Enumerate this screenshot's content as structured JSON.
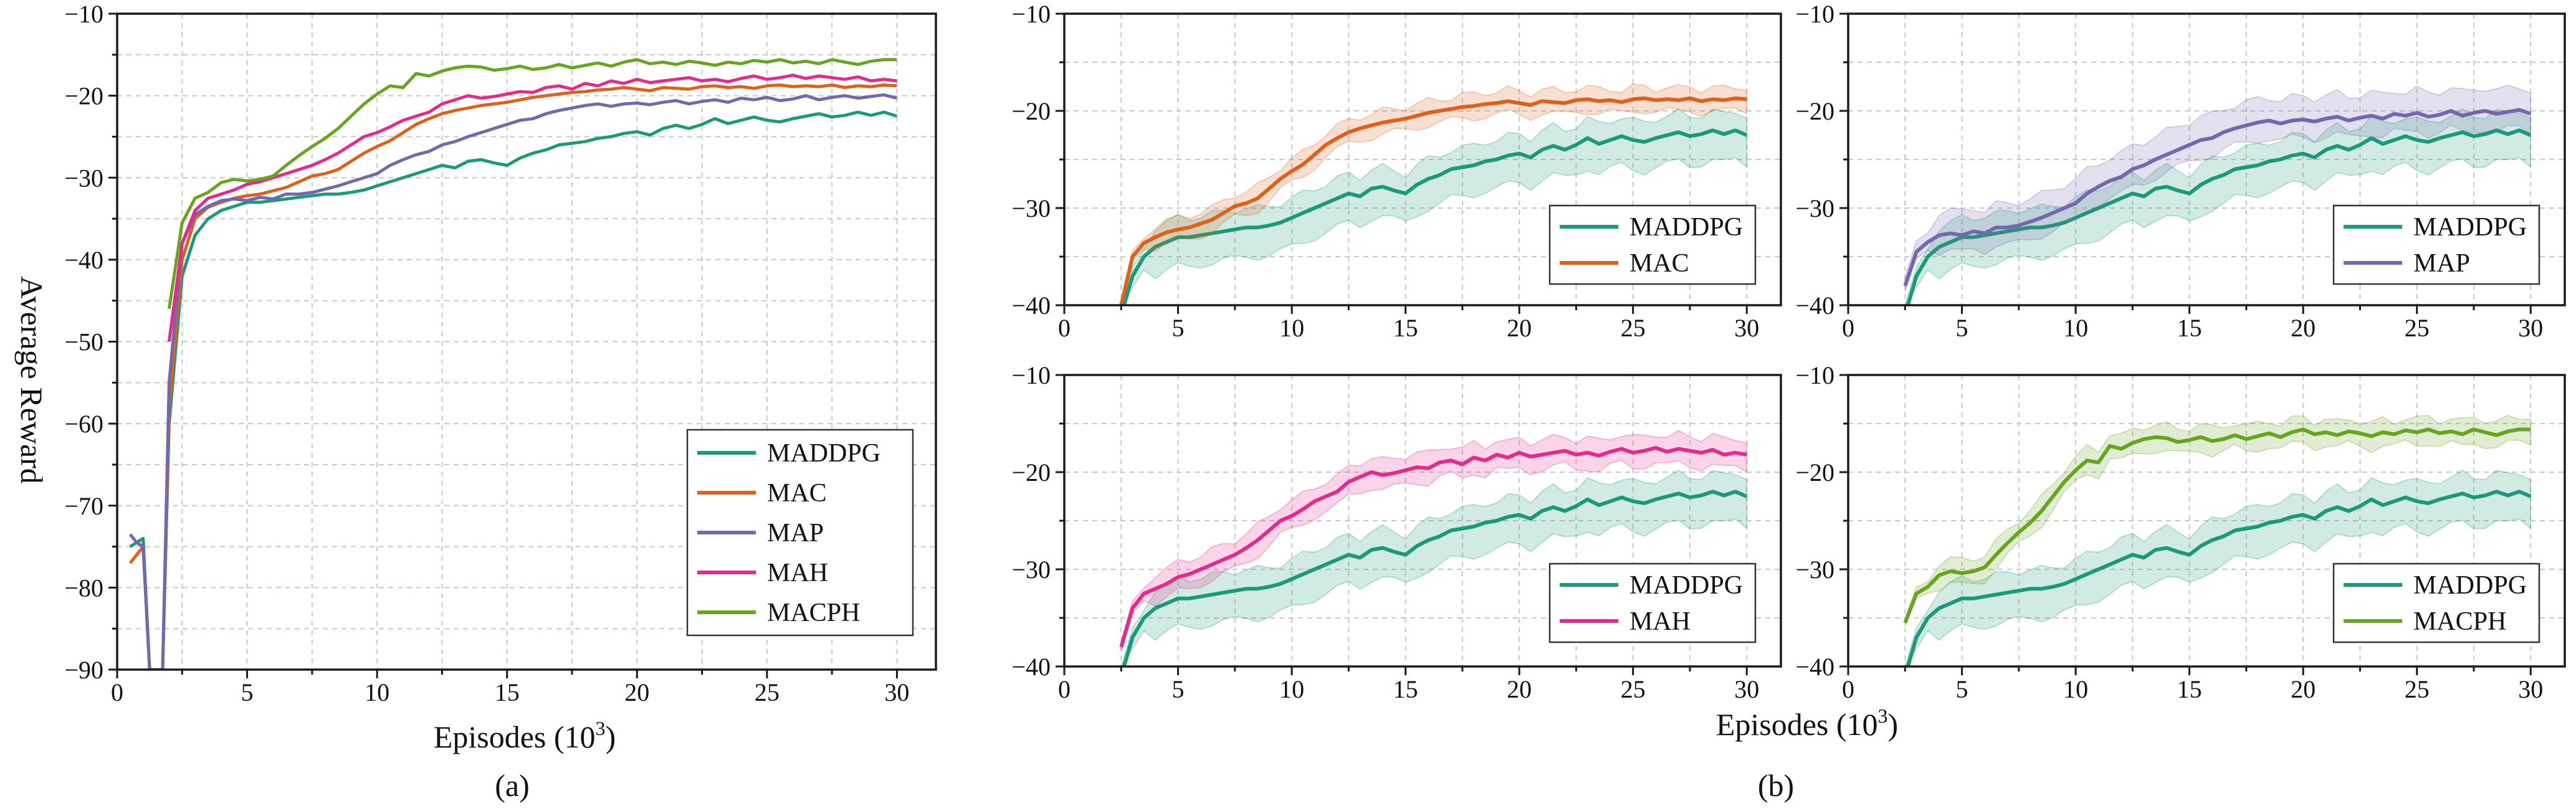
{
  "colors": {
    "MADDPG": "#1a9a78",
    "MAC": "#e0601a",
    "MAP": "#7367b0",
    "MAH": "#e42a8a",
    "MACPH": "#66a61e"
  },
  "panel_a": {
    "caption": "(a)",
    "xlabel": "Episodes (10",
    "xlabel_sup": "3",
    "xlabel_close": ")",
    "ylabel": "Average Reward"
  },
  "panel_b": {
    "caption": "(b)",
    "xlabel": "Episodes (10",
    "xlabel_sup": "3",
    "xlabel_close": ")"
  },
  "chart_data": [
    {
      "id": "a",
      "type": "line",
      "title": "",
      "xlabel": "Episodes (10^3)",
      "ylabel": "Average Reward",
      "xlim": [
        0,
        31.5
      ],
      "ylim": [
        -90,
        -10
      ],
      "xticks": [
        "0",
        "5",
        "10",
        "15",
        "20",
        "25",
        "30"
      ],
      "yticks": [
        "−90",
        "−80",
        "−70",
        "−60",
        "−50",
        "−40",
        "−30",
        "−20",
        "−10"
      ],
      "grid": true,
      "legend": "bottom-right",
      "series": [
        {
          "name": "MADDPG",
          "x": [
            0.5,
            0.75,
            1.0,
            1.25,
            1.5,
            1.75,
            2.0,
            2.5,
            3.0,
            3.5,
            4.0,
            4.5,
            5.0,
            5.5,
            6.0,
            6.5,
            7.0,
            7.5,
            8.0,
            8.5,
            9.0,
            9.5,
            10.0,
            10.5,
            11.0,
            11.5,
            12.0,
            12.5,
            13.0,
            13.5,
            14.0,
            14.5,
            15.0,
            15.5,
            16.0,
            16.5,
            17.0,
            17.5,
            18.0,
            18.5,
            19.0,
            19.5,
            20.0,
            20.5,
            21.0,
            21.5,
            22.0,
            22.5,
            23.0,
            23.5,
            24.0,
            24.5,
            25.0,
            25.5,
            26.0,
            26.5,
            27.0,
            27.5,
            28.0,
            28.5,
            29.0,
            29.5,
            30.0
          ],
          "values": [
            -75.0,
            -74.5,
            -74.0,
            -90.0,
            -90.0,
            -90.0,
            -60.0,
            -42.0,
            -37.0,
            -35.0,
            -34.0,
            -33.5,
            -33.0,
            -33.0,
            -32.8,
            -32.6,
            -32.4,
            -32.2,
            -32.0,
            -32.0,
            -31.8,
            -31.5,
            -31.0,
            -30.5,
            -30.0,
            -29.5,
            -29.0,
            -28.5,
            -28.8,
            -28.0,
            -27.8,
            -28.2,
            -28.5,
            -27.6,
            -27.0,
            -26.6,
            -26.0,
            -25.8,
            -25.6,
            -25.2,
            -25.0,
            -24.6,
            -24.4,
            -24.8,
            -24.0,
            -23.6,
            -24.0,
            -23.5,
            -22.8,
            -23.4,
            -23.0,
            -22.6,
            -23.0,
            -23.2,
            -22.8,
            -22.5,
            -22.2,
            -22.6,
            -22.4,
            -22.0,
            -22.4,
            -22.0,
            -22.5
          ]
        },
        {
          "name": "MAC",
          "x": [
            0.5,
            0.75,
            1.0,
            1.25,
            1.5,
            1.75,
            2.0,
            2.5,
            3.0,
            3.5,
            4.0,
            4.5,
            5.0,
            5.5,
            6.0,
            6.5,
            7.0,
            7.5,
            8.0,
            8.5,
            9.0,
            9.5,
            10.0,
            10.5,
            11.0,
            11.5,
            12.0,
            12.5,
            13.0,
            13.5,
            14.0,
            14.5,
            15.0,
            15.5,
            16.0,
            16.5,
            17.0,
            17.5,
            18.0,
            18.5,
            19.0,
            19.5,
            20.0,
            20.5,
            21.0,
            21.5,
            22.0,
            22.5,
            23.0,
            23.5,
            24.0,
            24.5,
            25.0,
            25.5,
            26.0,
            26.5,
            27.0,
            27.5,
            28.0,
            28.5,
            29.0,
            29.5,
            30.0
          ],
          "values": [
            -77.0,
            -76.0,
            -75.0,
            -90.0,
            -90.0,
            -90.0,
            -58.0,
            -40.0,
            -35.0,
            -33.6,
            -33.0,
            -32.5,
            -32.2,
            -32.0,
            -31.6,
            -31.2,
            -30.5,
            -29.8,
            -29.5,
            -29.0,
            -28.0,
            -27.0,
            -26.2,
            -25.5,
            -24.5,
            -23.5,
            -22.8,
            -22.2,
            -21.8,
            -21.5,
            -21.2,
            -21.0,
            -20.8,
            -20.5,
            -20.2,
            -20.0,
            -19.8,
            -19.6,
            -19.5,
            -19.3,
            -19.2,
            -19.0,
            -19.2,
            -19.4,
            -19.0,
            -19.1,
            -19.2,
            -18.9,
            -18.8,
            -19.0,
            -18.9,
            -19.1,
            -18.8,
            -18.7,
            -18.9,
            -18.8,
            -18.9,
            -18.7,
            -19.0,
            -18.8,
            -18.9,
            -18.7,
            -18.8
          ]
        },
        {
          "name": "MAP",
          "x": [
            0.5,
            0.75,
            1.0,
            1.25,
            1.5,
            1.75,
            2.0,
            2.5,
            3.0,
            3.5,
            4.0,
            4.5,
            5.0,
            5.5,
            6.0,
            6.5,
            7.0,
            7.5,
            8.0,
            8.5,
            9.0,
            9.5,
            10.0,
            10.5,
            11.0,
            11.5,
            12.0,
            12.5,
            13.0,
            13.5,
            14.0,
            14.5,
            15.0,
            15.5,
            16.0,
            16.5,
            17.0,
            17.5,
            18.0,
            18.5,
            19.0,
            19.5,
            20.0,
            20.5,
            21.0,
            21.5,
            22.0,
            22.5,
            23.0,
            23.5,
            24.0,
            24.5,
            25.0,
            25.5,
            26.0,
            26.5,
            27.0,
            27.5,
            28.0,
            28.5,
            29.0,
            29.5,
            30.0
          ],
          "values": [
            -73.5,
            -74.5,
            -75.0,
            -90.0,
            -90.0,
            -90.0,
            -55.0,
            -38.0,
            -34.5,
            -33.5,
            -32.8,
            -32.6,
            -32.8,
            -32.4,
            -32.6,
            -32.0,
            -32.0,
            -31.8,
            -31.4,
            -31.0,
            -30.5,
            -30.0,
            -29.5,
            -28.5,
            -27.8,
            -27.2,
            -26.8,
            -26.0,
            -25.6,
            -25.0,
            -24.5,
            -24.0,
            -23.5,
            -23.0,
            -22.8,
            -22.2,
            -21.8,
            -21.5,
            -21.2,
            -21.0,
            -21.3,
            -21.0,
            -20.9,
            -21.1,
            -20.8,
            -20.6,
            -21.0,
            -20.7,
            -20.5,
            -20.8,
            -20.3,
            -20.5,
            -20.2,
            -20.6,
            -20.4,
            -20.0,
            -20.5,
            -20.2,
            -20.0,
            -20.3,
            -20.1,
            -19.9,
            -20.3
          ]
        },
        {
          "name": "MAH",
          "x": [
            2.0,
            2.5,
            3.0,
            3.5,
            4.0,
            4.5,
            5.0,
            5.5,
            6.0,
            6.5,
            7.0,
            7.5,
            8.0,
            8.5,
            9.0,
            9.5,
            10.0,
            10.5,
            11.0,
            11.5,
            12.0,
            12.5,
            13.0,
            13.5,
            14.0,
            14.5,
            15.0,
            15.5,
            16.0,
            16.5,
            17.0,
            17.5,
            18.0,
            18.5,
            19.0,
            19.5,
            20.0,
            20.5,
            21.0,
            21.5,
            22.0,
            22.5,
            23.0,
            23.5,
            24.0,
            24.5,
            25.0,
            25.5,
            26.0,
            26.5,
            27.0,
            27.5,
            28.0,
            28.5,
            29.0,
            29.5,
            30.0
          ],
          "values": [
            -50.0,
            -38.0,
            -34.0,
            -32.5,
            -32.0,
            -31.5,
            -30.8,
            -30.5,
            -30.0,
            -29.5,
            -29.0,
            -28.5,
            -27.8,
            -27.0,
            -26.0,
            -25.0,
            -24.5,
            -23.8,
            -23.0,
            -22.5,
            -22.0,
            -21.0,
            -20.5,
            -20.0,
            -20.3,
            -20.1,
            -19.8,
            -19.5,
            -19.6,
            -19.0,
            -18.8,
            -19.2,
            -18.5,
            -18.8,
            -18.2,
            -18.5,
            -18.0,
            -18.4,
            -18.2,
            -18.0,
            -17.8,
            -18.2,
            -18.0,
            -18.3,
            -17.9,
            -17.6,
            -18.0,
            -17.8,
            -17.5,
            -17.9,
            -17.6,
            -17.8,
            -18.0,
            -17.7,
            -18.2,
            -18.0,
            -18.2
          ]
        },
        {
          "name": "MACPH",
          "x": [
            2.0,
            2.5,
            3.0,
            3.5,
            4.0,
            4.5,
            5.0,
            5.5,
            6.0,
            6.5,
            7.0,
            7.5,
            8.0,
            8.5,
            9.0,
            9.5,
            10.0,
            10.5,
            11.0,
            11.5,
            12.0,
            12.5,
            13.0,
            13.5,
            14.0,
            14.5,
            15.0,
            15.5,
            16.0,
            16.5,
            17.0,
            17.5,
            18.0,
            18.5,
            19.0,
            19.5,
            20.0,
            20.5,
            21.0,
            21.5,
            22.0,
            22.5,
            23.0,
            23.5,
            24.0,
            24.5,
            25.0,
            25.5,
            26.0,
            26.5,
            27.0,
            27.5,
            28.0,
            28.5,
            29.0,
            29.5,
            30.0
          ],
          "values": [
            -46.0,
            -35.5,
            -32.5,
            -31.8,
            -30.6,
            -30.2,
            -30.4,
            -30.2,
            -29.8,
            -28.5,
            -27.3,
            -26.2,
            -25.2,
            -24.0,
            -22.5,
            -21.0,
            -19.8,
            -18.8,
            -19.0,
            -17.3,
            -17.6,
            -17.0,
            -16.6,
            -16.4,
            -16.5,
            -16.9,
            -16.7,
            -16.4,
            -16.8,
            -16.6,
            -16.2,
            -16.6,
            -16.3,
            -16.0,
            -16.4,
            -15.9,
            -15.6,
            -16.1,
            -15.9,
            -16.2,
            -15.8,
            -16.0,
            -16.3,
            -15.9,
            -16.1,
            -15.7,
            -15.9,
            -15.6,
            -16.0,
            -15.8,
            -16.1,
            -15.6,
            -15.9,
            -16.2,
            -15.8,
            -15.6,
            -15.6
          ]
        }
      ]
    },
    {
      "id": "b1",
      "type": "line",
      "title": "",
      "xlabel": "",
      "ylabel": "",
      "xlim": [
        0,
        31.5
      ],
      "ylim": [
        -40,
        -10
      ],
      "xticks": [
        "0",
        "5",
        "10",
        "15",
        "20",
        "25",
        "30"
      ],
      "yticks": [
        "−40",
        "−30",
        "−20",
        "−10"
      ],
      "grid": true,
      "legend": "bottom-right",
      "shaded_band": "min-max spread",
      "series": [
        {
          "name": "MADDPG",
          "band": [
            -3.0,
            2.0
          ]
        },
        {
          "name": "MAC",
          "band": [
            -1.2,
            1.2
          ]
        }
      ]
    },
    {
      "id": "b2",
      "type": "line",
      "title": "",
      "xlabel": "",
      "ylabel": "",
      "xlim": [
        0,
        31.5
      ],
      "ylim": [
        -40,
        -10
      ],
      "xticks": [
        "0",
        "5",
        "10",
        "15",
        "20",
        "25",
        "30"
      ],
      "yticks": [
        "−40",
        "−30",
        "−20",
        "−10"
      ],
      "grid": true,
      "legend": "bottom-right",
      "shaded_band": "min-max spread",
      "series": [
        {
          "name": "MADDPG",
          "band": [
            -3.0,
            2.0
          ]
        },
        {
          "name": "MAP",
          "band": [
            -1.8,
            2.4
          ]
        }
      ]
    },
    {
      "id": "b3",
      "type": "line",
      "title": "",
      "xlabel": "",
      "ylabel": "",
      "xlim": [
        0,
        31.5
      ],
      "ylim": [
        -40,
        -10
      ],
      "xticks": [
        "0",
        "5",
        "10",
        "15",
        "20",
        "25",
        "30"
      ],
      "yticks": [
        "−40",
        "−30",
        "−20",
        "−10"
      ],
      "grid": true,
      "legend": "bottom-right",
      "shaded_band": "min-max spread",
      "series": [
        {
          "name": "MADDPG",
          "band": [
            -3.0,
            2.0
          ]
        },
        {
          "name": "MAH",
          "band": [
            -1.5,
            1.5
          ]
        }
      ]
    },
    {
      "id": "b4",
      "type": "line",
      "title": "",
      "xlabel": "",
      "ylabel": "",
      "xlim": [
        0,
        31.5
      ],
      "ylim": [
        -40,
        -10
      ],
      "xticks": [
        "0",
        "5",
        "10",
        "15",
        "20",
        "25",
        "30"
      ],
      "yticks": [
        "−40",
        "−30",
        "−20",
        "−10"
      ],
      "grid": true,
      "legend": "bottom-right",
      "shaded_band": "min-max spread",
      "series": [
        {
          "name": "MADDPG",
          "band": [
            -3.0,
            2.0
          ]
        },
        {
          "name": "MACPH",
          "band": [
            -1.3,
            1.3
          ]
        }
      ]
    }
  ]
}
